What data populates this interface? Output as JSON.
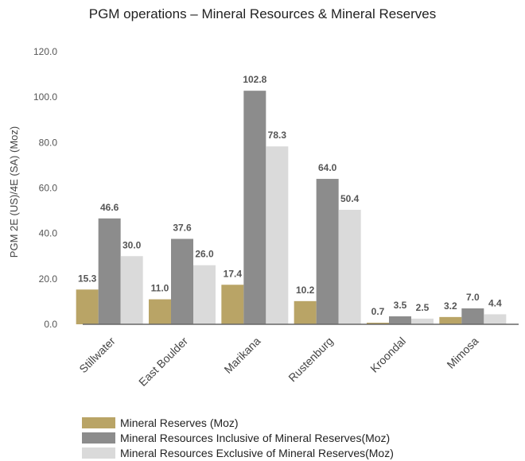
{
  "chart_data": {
    "type": "bar",
    "title": "PGM operations – Mineral Resources & Mineral Reserves",
    "ylabel": "PGM 2E (US)/4E (SA) (Moz)",
    "xlabel": "",
    "ylim": [
      0,
      120
    ],
    "yticks": [
      "0.0",
      "20.0",
      "40.0",
      "60.0",
      "80.0",
      "100.0",
      "120.0"
    ],
    "categories": [
      "Stillwater",
      "East Boulder",
      "Marikana",
      "Rustenburg",
      "Kroondal",
      "Mimosa"
    ],
    "series": [
      {
        "name": "Mineral Reserves (Moz)",
        "color": "#b9a466",
        "values": [
          15.3,
          11.0,
          17.4,
          10.2,
          0.7,
          3.2
        ],
        "labels": [
          "15.3",
          "11.0",
          "17.4",
          "10.2",
          "0.7",
          "3.2"
        ]
      },
      {
        "name": "Mineral Resources Inclusive of Mineral Reserves(Moz)",
        "color": "#8c8c8c",
        "values": [
          46.6,
          37.6,
          102.8,
          64.0,
          3.5,
          7.0
        ],
        "labels": [
          "46.6",
          "37.6",
          "102.8",
          "64.0",
          "3.5",
          "7.0"
        ]
      },
      {
        "name": "Mineral Resources Exclusive of Mineral Reserves(Moz)",
        "color": "#dadada",
        "values": [
          30.0,
          26.0,
          78.3,
          50.4,
          2.5,
          4.4
        ],
        "labels": [
          "30.0",
          "26.0",
          "78.3",
          "50.4",
          "2.5",
          "4.4"
        ]
      }
    ],
    "grid": false,
    "legend_position": "bottom-left"
  }
}
